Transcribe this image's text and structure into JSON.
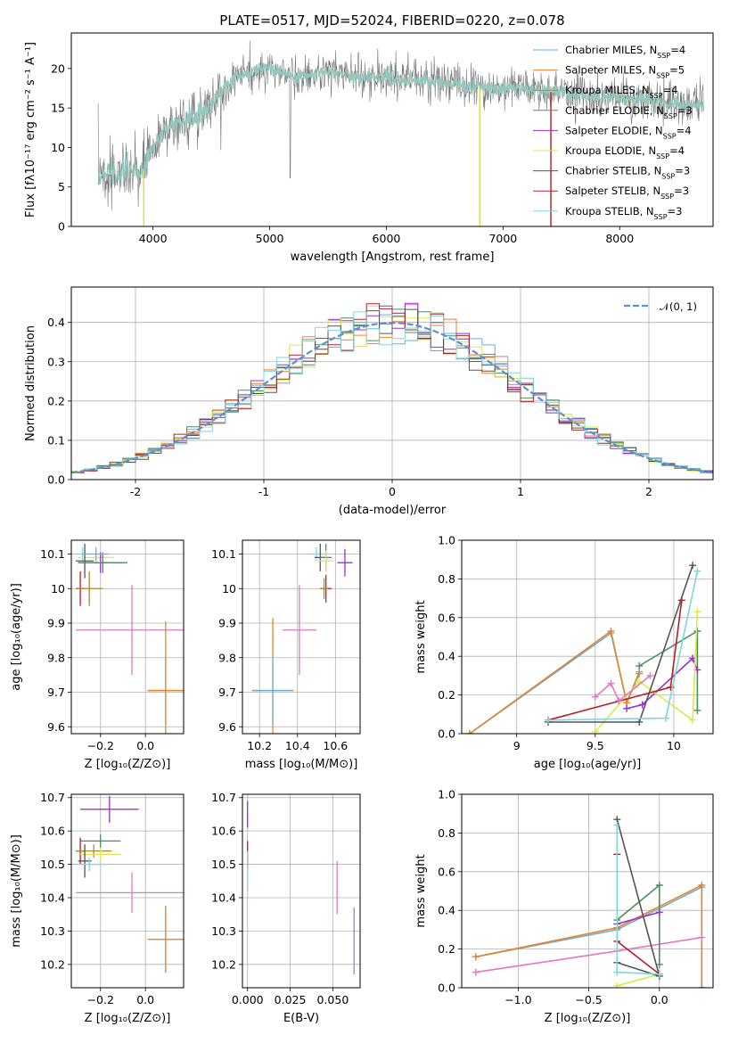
{
  "figure_title": "PLATE=0517, MJD=52024, FIBERID=0220, z=0.078",
  "colors": {
    "Chabrier MILES": "#6baed6",
    "Salpeter MILES": "#e6842a",
    "Kroupa MILES": "#b08a2e",
    "Chabrier ELODIE": "#4a8f5c",
    "Salpeter ELODIE": "#9b30c9",
    "Kroupa ELODIE": "#dbe84f",
    "Chabrier STELIB": "#555555",
    "Salpeter STELIB": "#b22222",
    "Kroupa STELIB": "#7fd6de",
    "pink": "#e377c2",
    "gaussian": "#5b8fd6"
  },
  "chart_data": [
    {
      "id": "spectrum",
      "type": "line",
      "xlabel": "wavelength [Angstrom, rest frame]",
      "ylabel": "Flux [fλ10⁻¹⁷ erg cm⁻² s⁻¹ A⁻¹]",
      "xlim": [
        3300,
        8800
      ],
      "ylim": [
        0,
        24.5
      ],
      "xticks": [
        4000,
        5000,
        6000,
        7000,
        8000
      ],
      "yticks": [
        0,
        5,
        10,
        15,
        20
      ],
      "legend_position": "top-right",
      "legend": [
        {
          "name": "Chabrier MILES, N",
          "sub": "SSP",
          "suffix": "=4",
          "color_key": "Chabrier MILES"
        },
        {
          "name": "Salpeter MILES, N",
          "sub": "SSP",
          "suffix": "=5",
          "color_key": "Salpeter MILES"
        },
        {
          "name": "Kroupa MILES, N",
          "sub": "SSP",
          "suffix": "=4",
          "color_key": "Kroupa MILES"
        },
        {
          "name": "Chabrier ELODIE, N",
          "sub": "SSP",
          "suffix": "=3",
          "color_key": "Chabrier ELODIE"
        },
        {
          "name": "Salpeter ELODIE, N",
          "sub": "SSP",
          "suffix": "=4",
          "color_key": "Salpeter ELODIE"
        },
        {
          "name": "Kroupa ELODIE, N",
          "sub": "SSP",
          "suffix": "=4",
          "color_key": "Kroupa ELODIE"
        },
        {
          "name": "Chabrier STELIB, N",
          "sub": "SSP",
          "suffix": "=3",
          "color_key": "Chabrier STELIB"
        },
        {
          "name": "Salpeter STELIB, N",
          "sub": "SSP",
          "suffix": "=3",
          "color_key": "Salpeter STELIB"
        },
        {
          "name": "Kroupa STELIB, N",
          "sub": "SSP",
          "suffix": "=3",
          "color_key": "Kroupa STELIB"
        }
      ],
      "continuum_points": [
        [
          3530,
          7
        ],
        [
          3650,
          6.5
        ],
        [
          3800,
          7
        ],
        [
          3900,
          6.5
        ],
        [
          4000,
          10
        ],
        [
          4100,
          12.5
        ],
        [
          4300,
          13.5
        ],
        [
          4500,
          15.5
        ],
        [
          4700,
          19
        ],
        [
          4850,
          19.5
        ],
        [
          5000,
          20
        ],
        [
          5200,
          19
        ],
        [
          5500,
          19.5
        ],
        [
          5800,
          19
        ],
        [
          6000,
          19
        ],
        [
          6300,
          18.5
        ],
        [
          6600,
          18
        ],
        [
          6900,
          17.5
        ],
        [
          7200,
          17.5
        ],
        [
          7400,
          17
        ],
        [
          7800,
          16.5
        ],
        [
          8200,
          16
        ],
        [
          8500,
          15.5
        ],
        [
          8700,
          15.5
        ]
      ],
      "model_drops": [
        {
          "color_key": "Kroupa MILES",
          "x": 3920,
          "y_from": 7,
          "y_to": 0
        },
        {
          "color_key": "Kroupa ELODIE",
          "x": 3920,
          "y_from": 7,
          "y_to": 0
        },
        {
          "color_key": "Kroupa MILES",
          "x": 6800,
          "y_from": 17.5,
          "y_to": 0
        },
        {
          "color_key": "Kroupa ELODIE",
          "x": 6800,
          "y_from": 17.5,
          "y_to": 0
        },
        {
          "color_key": "Salpeter MILES",
          "x": 7410,
          "y_from": 17,
          "y_to": 0
        },
        {
          "color_key": "Salpeter STELIB",
          "x": 7410,
          "y_from": 17,
          "y_to": 0
        }
      ]
    },
    {
      "id": "residual_histogram",
      "type": "histogram",
      "xlabel": "(data-model)/error",
      "ylabel": "Normed distribution",
      "xlim": [
        -2.5,
        2.5
      ],
      "ylim": [
        0,
        0.49
      ],
      "xticks": [
        -2,
        -1,
        0,
        1,
        2
      ],
      "yticks": [
        0.0,
        0.1,
        0.2,
        0.3,
        0.4
      ],
      "legend_position": "top-right",
      "legend": [
        {
          "name": "𝒩(0, 1)",
          "color_key": "gaussian"
        }
      ],
      "gaussian": {
        "mu": 0,
        "sigma": 1
      },
      "bin_width": 0.1,
      "histogram_colors": [
        "Chabrier MILES",
        "Salpeter MILES",
        "Chabrier ELODIE",
        "Salpeter ELODIE",
        "Kroupa ELODIE",
        "Chabrier STELIB",
        "Salpeter STELIB",
        "Kroupa STELIB"
      ]
    },
    {
      "id": "age_vs_Z",
      "type": "errorbar",
      "xlabel": "Z [log₁₀(Z/Z⊙)]",
      "ylabel": "age  [log₁₀(age/yr)]",
      "xlim": [
        -0.33,
        0.17
      ],
      "ylim": [
        9.58,
        10.14
      ],
      "xticks": [
        -0.2,
        0.0
      ],
      "xticklabels": [
        "−0.2",
        "0.0"
      ],
      "yticks": [
        9.6,
        9.7,
        9.8,
        9.9,
        10.0,
        10.1
      ],
      "points": [
        {
          "color_key": "Kroupa STELIB",
          "x": -0.28,
          "y": 10.1,
          "xerr": 0.05,
          "yerr": 0.02
        },
        {
          "color_key": "Kroupa ELODIE",
          "x": -0.22,
          "y": 10.09,
          "xerr": 0.08,
          "yerr": 0.02
        },
        {
          "color_key": "Chabrier STELIB",
          "x": -0.27,
          "y": 10.08,
          "xerr": 0.04,
          "yerr": 0.05
        },
        {
          "color_key": "Salpeter ELODIE",
          "x": -0.2,
          "y": 10.075,
          "xerr": 0.1,
          "yerr": 0.03
        },
        {
          "color_key": "Chabrier ELODIE",
          "x": -0.19,
          "y": 10.075,
          "xerr": 0.11,
          "yerr": 0.03
        },
        {
          "color_key": "Chabrier MILES",
          "x": -0.22,
          "y": 10.1,
          "xerr": 0.06,
          "yerr": 0.02
        },
        {
          "color_key": "Salpeter STELIB",
          "x": -0.29,
          "y": 10.0,
          "xerr": 0.02,
          "yerr": 0.05
        },
        {
          "color_key": "Kroupa MILES",
          "x": -0.25,
          "y": 10.0,
          "xerr": 0.06,
          "yerr": 0.05
        },
        {
          "color_key": "pink",
          "x": -0.06,
          "y": 9.88,
          "xerr": 0.25,
          "yerr": 0.13
        },
        {
          "color_key": "Chabrier MILES",
          "x": 0.09,
          "y": 9.705,
          "xerr": 0.08,
          "yerr": 0.1
        },
        {
          "color_key": "Salpeter MILES",
          "x": 0.09,
          "y": 9.705,
          "xerr": 0.08,
          "yerr": 0.2
        }
      ]
    },
    {
      "id": "age_vs_mass",
      "type": "errorbar",
      "xlabel": "mass [log₁₀(M/M⊙)]",
      "xlim": [
        10.11,
        10.73
      ],
      "ylim": [
        9.58,
        10.14
      ],
      "xticks": [
        10.2,
        10.4,
        10.6
      ],
      "yticks": [
        9.6,
        9.7,
        9.8,
        9.9,
        10.0,
        10.1
      ],
      "points": [
        {
          "color_key": "Kroupa STELIB",
          "x": 10.5,
          "y": 10.1,
          "xerr": 0.05,
          "yerr": 0.02
        },
        {
          "color_key": "Chabrier STELIB",
          "x": 10.52,
          "y": 10.09,
          "xerr": 0.03,
          "yerr": 0.04
        },
        {
          "color_key": "Chabrier ELODIE",
          "x": 10.55,
          "y": 10.09,
          "xerr": 0.03,
          "yerr": 0.04
        },
        {
          "color_key": "Kroupa ELODIE",
          "x": 10.55,
          "y": 10.08,
          "xerr": 0.04,
          "yerr": 0.03
        },
        {
          "color_key": "Salpeter ELODIE",
          "x": 10.65,
          "y": 10.075,
          "xerr": 0.04,
          "yerr": 0.04
        },
        {
          "color_key": "Salpeter STELIB",
          "x": 10.55,
          "y": 10.0,
          "xerr": 0.03,
          "yerr": 0.04
        },
        {
          "color_key": "Kroupa MILES",
          "x": 10.54,
          "y": 10.0,
          "xerr": 0.02,
          "yerr": 0.03
        },
        {
          "color_key": "pink",
          "x": 10.41,
          "y": 9.88,
          "xerr": 0.09,
          "yerr": 0.13
        },
        {
          "color_key": "Salpeter MILES",
          "x": 10.27,
          "y": 9.705,
          "xerr": 0.11,
          "yerr": 0.21
        },
        {
          "color_key": "Chabrier MILES",
          "x": 10.27,
          "y": 9.705,
          "xerr": 0.1,
          "yerr": 0.1
        }
      ]
    },
    {
      "id": "mass_weight_vs_age",
      "type": "line",
      "xlabel": "age  [log₁₀(age/yr)]",
      "ylabel": "mass weight",
      "xlim": [
        8.65,
        10.25
      ],
      "ylim": [
        0,
        1
      ],
      "xticks": [
        9.0,
        9.5,
        10.0
      ],
      "yticks": [
        0.0,
        0.2,
        0.4,
        0.6,
        0.8,
        1.0
      ],
      "series": [
        {
          "color_key": "Chabrier MILES",
          "points": [
            [
              8.7,
              0.0
            ],
            [
              9.6,
              0.52
            ],
            [
              9.7,
              0.16
            ],
            [
              9.78,
              0.32
            ]
          ]
        },
        {
          "color_key": "Salpeter MILES",
          "points": [
            [
              8.7,
              0.0
            ],
            [
              9.6,
              0.53
            ],
            [
              9.7,
              0.16
            ],
            [
              9.78,
              0.31
            ]
          ]
        },
        {
          "color_key": "Chabrier ELODIE",
          "points": [
            [
              9.78,
              0.35
            ],
            [
              10.15,
              0.53
            ],
            [
              10.15,
              0.12
            ]
          ]
        },
        {
          "color_key": "Salpeter ELODIE",
          "points": [
            [
              9.7,
              0.13
            ],
            [
              9.8,
              0.15
            ],
            [
              10.12,
              0.39
            ],
            [
              10.15,
              0.33
            ]
          ]
        },
        {
          "color_key": "Kroupa ELODIE",
          "points": [
            [
              9.5,
              0.01
            ],
            [
              9.78,
              0.27
            ],
            [
              10.12,
              0.07
            ],
            [
              10.15,
              0.63
            ]
          ]
        },
        {
          "color_key": "Chabrier STELIB",
          "points": [
            [
              9.2,
              0.06
            ],
            [
              9.78,
              0.06
            ],
            [
              10.12,
              0.87
            ]
          ]
        },
        {
          "color_key": "Salpeter STELIB",
          "points": [
            [
              9.2,
              0.07
            ],
            [
              9.98,
              0.24
            ],
            [
              10.05,
              0.69
            ]
          ]
        },
        {
          "color_key": "Kroupa STELIB",
          "points": [
            [
              9.2,
              0.07
            ],
            [
              9.95,
              0.08
            ],
            [
              10.15,
              0.84
            ]
          ]
        },
        {
          "color_key": "pink",
          "points": [
            [
              9.5,
              0.19
            ],
            [
              9.6,
              0.26
            ],
            [
              9.65,
              0.17
            ],
            [
              9.85,
              0.3
            ]
          ]
        }
      ]
    },
    {
      "id": "mass_vs_Z",
      "type": "errorbar",
      "xlabel": "Z [log₁₀(Z/Z⊙)]",
      "ylabel": "mass [log₁₀(M/M⊙)]",
      "xlim": [
        -0.33,
        0.17
      ],
      "ylim": [
        10.13,
        10.71
      ],
      "xticks": [
        -0.2,
        0.0
      ],
      "xticklabels": [
        "−0.2",
        "0.0"
      ],
      "yticks": [
        10.2,
        10.3,
        10.4,
        10.5,
        10.6,
        10.7
      ],
      "points": [
        {
          "color_key": "Salpeter ELODIE",
          "x": -0.16,
          "y": 10.665,
          "xerr": 0.13,
          "yerr": 0.04
        },
        {
          "color_key": "Chabrier ELODIE",
          "x": -0.2,
          "y": 10.57,
          "xerr": 0.09,
          "yerr": 0.02
        },
        {
          "color_key": "Salpeter STELIB",
          "x": -0.29,
          "y": 10.54,
          "xerr": 0.02,
          "yerr": 0.04
        },
        {
          "color_key": "Kroupa MILES",
          "x": -0.23,
          "y": 10.54,
          "xerr": 0.08,
          "yerr": 0.02
        },
        {
          "color_key": "Kroupa ELODIE",
          "x": -0.2,
          "y": 10.53,
          "xerr": 0.09,
          "yerr": 0.02
        },
        {
          "color_key": "Chabrier STELIB",
          "x": -0.27,
          "y": 10.51,
          "xerr": 0.03,
          "yerr": 0.05
        },
        {
          "color_key": "Kroupa STELIB",
          "x": -0.25,
          "y": 10.5,
          "xerr": 0.07,
          "yerr": 0.02
        },
        {
          "color_key": "pink",
          "x": -0.06,
          "y": 10.415,
          "xerr": 0.25,
          "yerr": 0.06
        },
        {
          "color_key": "Chabrier MILES",
          "x": 0.09,
          "y": 10.275,
          "xerr": 0.08,
          "yerr": 0.1
        },
        {
          "color_key": "Salpeter MILES",
          "x": 0.09,
          "y": 10.275,
          "xerr": 0.08,
          "yerr": 0.1
        }
      ]
    },
    {
      "id": "mass_vs_ebv",
      "type": "errorbar",
      "xlabel": "E(B-V)",
      "xlim": [
        -0.003,
        0.066
      ],
      "ylim": [
        10.13,
        10.71
      ],
      "xticks": [
        0.0,
        0.025,
        0.05
      ],
      "xticklabels": [
        "0.000",
        "0.025",
        "0.050"
      ],
      "yticks": [
        10.2,
        10.3,
        10.4,
        10.5,
        10.6,
        10.7
      ],
      "points": [
        {
          "color_key": "Salpeter ELODIE",
          "x": 0.0,
          "y": 10.65,
          "xerr": 0,
          "yerr": 0.04
        },
        {
          "color_key": "Salpeter STELIB",
          "x": 0.0,
          "y": 10.53,
          "xerr": 0,
          "yerr": 0.04
        },
        {
          "color_key": "Kroupa STELIB",
          "x": 0.0,
          "y": 10.48,
          "xerr": 0,
          "yerr": 0.06
        },
        {
          "color_key": "pink",
          "x": 0.0525,
          "y": 10.43,
          "xerr": 0,
          "yerr": 0.08
        },
        {
          "color_key": "Salpeter MILES",
          "x": 0.0625,
          "y": 10.27,
          "xerr": 0,
          "yerr": 0.1
        },
        {
          "color_key": "Chabrier MILES",
          "x": 0.0625,
          "y": 10.27,
          "xerr": 0,
          "yerr": 0.1
        }
      ]
    },
    {
      "id": "mass_weight_vs_Z",
      "type": "line",
      "xlabel": "Z [log₁₀(Z/Z⊙)]",
      "ylabel": "mass weight",
      "xlim": [
        -1.4,
        0.38
      ],
      "ylim": [
        0,
        1
      ],
      "xticks": [
        -1.0,
        -0.5,
        0.0
      ],
      "xticklabels": [
        "−1.0",
        "−0.5",
        "0.0"
      ],
      "yticks": [
        0.0,
        0.2,
        0.4,
        0.6,
        0.8,
        1.0
      ],
      "series": [
        {
          "color_key": "Chabrier MILES",
          "points": [
            [
              -1.3,
              0.16
            ],
            [
              -0.3,
              0.3
            ],
            [
              0.3,
              0.52
            ],
            [
              0.3,
              0.0
            ]
          ]
        },
        {
          "color_key": "Salpeter MILES",
          "points": [
            [
              -1.3,
              0.16
            ],
            [
              -0.3,
              0.31
            ],
            [
              0.3,
              0.53
            ],
            [
              0.3,
              0.0
            ]
          ]
        },
        {
          "color_key": "pink",
          "points": [
            [
              -1.3,
              0.08
            ],
            [
              -0.3,
              0.19
            ],
            [
              0.3,
              0.26
            ]
          ]
        },
        {
          "color_key": "Chabrier ELODIE",
          "points": [
            [
              -0.3,
              0.35
            ],
            [
              0.0,
              0.53
            ],
            [
              0.0,
              0.12
            ]
          ]
        },
        {
          "color_key": "Salpeter ELODIE",
          "points": [
            [
              -0.3,
              0.33
            ],
            [
              0.0,
              0.39
            ]
          ]
        },
        {
          "color_key": "Kroupa ELODIE",
          "points": [
            [
              -0.3,
              0.01
            ],
            [
              0.0,
              0.07
            ]
          ]
        },
        {
          "color_key": "Chabrier STELIB",
          "points": [
            [
              -0.3,
              0.87
            ],
            [
              0.0,
              0.06
            ],
            [
              -0.3,
              0.13
            ]
          ]
        },
        {
          "color_key": "Salpeter STELIB",
          "points": [
            [
              -0.3,
              0.69
            ],
            [
              -0.3,
              0.24
            ],
            [
              0.0,
              0.07
            ]
          ]
        },
        {
          "color_key": "Kroupa STELIB",
          "points": [
            [
              -0.3,
              0.84
            ],
            [
              -0.3,
              0.08
            ],
            [
              0.0,
              0.07
            ]
          ]
        }
      ]
    }
  ]
}
